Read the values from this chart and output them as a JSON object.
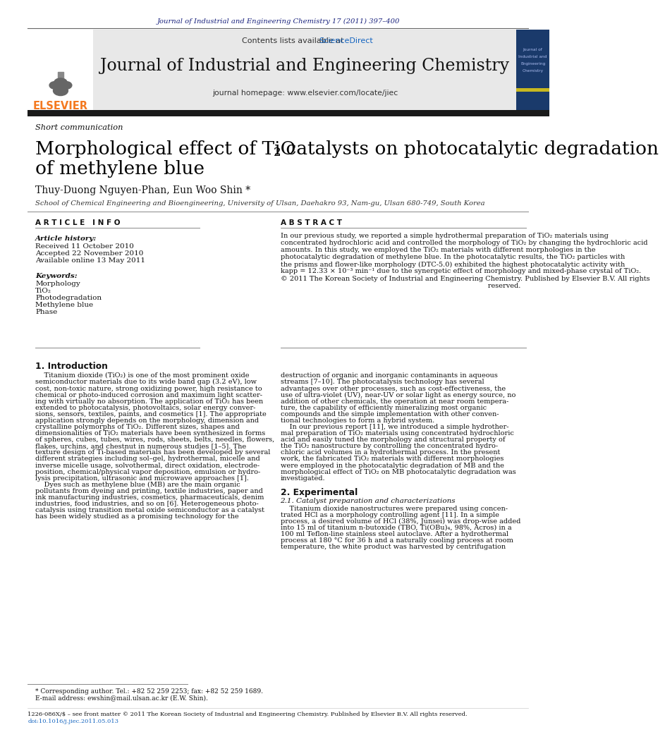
{
  "page_bg": "#ffffff",
  "top_journal_line": "Journal of Industrial and Engineering Chemistry 17 (2011) 397–400",
  "top_journal_color": "#1a237e",
  "header_bg": "#e8e8e8",
  "header_contents": "Contents lists available at",
  "header_sciencedirect": "ScienceDirect",
  "header_sciencedirect_color": "#1565c0",
  "journal_title": "Journal of Industrial and Engineering Chemistry",
  "journal_homepage": "journal homepage: www.elsevier.com/locate/jiec",
  "elsevier_orange": "#f47920",
  "dark_bar_color": "#1a1a1a",
  "section_label": "Short communication",
  "article_title_line1": "Morphological effect of TiO",
  "article_title_sub": "2",
  "article_title_line1b": " catalysts on photocatalytic degradation",
  "article_title_line2": "of methylene blue",
  "authors": "Thuy-Duong Nguyen-Phan, Eun Woo Shin *",
  "affiliation": "School of Chemical Engineering and Bioengineering, University of Ulsan, Daehakro 93, Nam-gu, Ulsan 680-749, South Korea",
  "article_info_header": "A R T I C L E   I N F O",
  "abstract_header": "A B S T R A C T",
  "article_history_label": "Article history:",
  "received": "Received 11 October 2010",
  "accepted": "Accepted 22 November 2010",
  "available": "Available online 13 May 2011",
  "keywords_label": "Keywords:",
  "keywords": [
    "Morphology",
    "TiO₂",
    "Photodegradation",
    "Methylene blue",
    "Phase"
  ],
  "footnote_line1": "* Corresponding author. Tel.: +82 52 259 2253; fax: +82 52 259 1689.",
  "footnote_line2": "E-mail address: ewshin@mail.ulsan.ac.kr (E.W. Shin).",
  "bottom_line1": "1226-086X/$ – see front matter © 2011 The Korean Society of Industrial and Engineering Chemistry. Published by Elsevier B.V. All rights reserved.",
  "bottom_line2": "doi:10.1016/j.jiec.2011.05.013",
  "doi_color": "#1565c0",
  "abstract_lines": [
    "In our previous study, we reported a simple hydrothermal preparation of TiO₂ materials using",
    "concentrated hydrochloric acid and controlled the morphology of TiO₂ by changing the hydrochloric acid",
    "amounts. In this study, we employed the TiO₂ materials with different morphologies in the",
    "photocatalytic degradation of methylene blue. In the photocatalytic results, the TiO₂ particles with",
    "the prisms and flower-like morphology (DTC-5.0) exhibited the highest photocatalytic activity with",
    "kapp = 12.33 × 10⁻³ min⁻¹ due to the synergetic effect of morphology and mixed-phase crystal of TiO₂.",
    "© 2011 The Korean Society of Industrial and Engineering Chemistry. Published by Elsevier B.V. All rights",
    "                                                                                              reserved."
  ],
  "intro_col1_lines": [
    "    Titanium dioxide (TiO₂) is one of the most prominent oxide",
    "semiconductor materials due to its wide band gap (3.2 eV), low",
    "cost, non-toxic nature, strong oxidizing power, high resistance to",
    "chemical or photo-induced corrosion and maximum light scatter-",
    "ing with virtually no absorption. The application of TiO₂ has been",
    "extended to photocatalysis, photovoltaics, solar energy conver-",
    "sions, sensors, textiles, paints, and cosmetics [1]. The appropriate",
    "application strongly depends on the morphology, dimension and",
    "crystalline polymorphs of TiO₂. Different sizes, shapes and",
    "dimensionalities of TiO₂ materials have been synthesized in forms",
    "of spheres, cubes, tubes, wires, rods, sheets, belts, needles, flowers,",
    "flakes, urchins, and chestnut in numerous studies [1–5]. The",
    "texture design of Ti-based materials has been developed by several",
    "different strategies including sol–gel, hydrothermal, micelle and",
    "inverse micelle usage, solvothermal, direct oxidation, electrode-",
    "position, chemical/physical vapor deposition, emulsion or hydro-",
    "lysis precipitation, ultrasonic and microwave approaches [1].",
    "    Dyes such as methylene blue (MB) are the main organic",
    "pollutants from dyeing and printing, textile industries, paper and",
    "ink manufacturing industries, cosmetics, pharmaceuticals, denim",
    "industries, food industries, and so on [6]. Heterogeneous photo-",
    "catalysis using transition metal oxide semiconductor as a catalyst",
    "has been widely studied as a promising technology for the"
  ],
  "intro_col2_lines": [
    "destruction of organic and inorganic contaminants in aqueous",
    "streams [7–10]. The photocatalysis technology has several",
    "advantages over other processes, such as cost-effectiveness, the",
    "use of ultra-violet (UV), near-UV or solar light as energy source, no",
    "addition of other chemicals, the operation at near room tempera-",
    "ture, the capability of efficiently mineralizing most organic",
    "compounds and the simple implementation with other conven-",
    "tional technologies to form a hybrid system.",
    "    In our previous report [11], we introduced a simple hydrother-",
    "mal preparation of TiO₂ materials using concentrated hydrochloric",
    "acid and easily tuned the morphology and structural property of",
    "the TiO₂ nanostructure by controlling the concentrated hydro-",
    "chloric acid volumes in a hydrothermal process. In the present",
    "work, the fabricated TiO₂ materials with different morphologies",
    "were employed in the photocatalytic degradation of MB and the",
    "morphological effect of TiO₂ on MB photocatalytic degradation was",
    "investigated."
  ],
  "sec2_header": "2. Experimental",
  "sec21_header": "2.1. Catalyst preparation and characterizations",
  "sec21_lines": [
    "    Titanium dioxide nanostructures were prepared using concen-",
    "trated HCl as a morphology controlling agent [11]. In a simple",
    "process, a desired volume of HCl (38%, Junsei) was drop-wise added",
    "into 15 ml of titanium n-butoxide (TBO, Ti(OBu)₄, 98%, Acros) in a",
    "100 ml Teflon-line stainless steel autoclave. After a hydrothermal",
    "process at 180 °C for 36 h and a naturally cooling process at room",
    "temperature, the white product was harvested by centrifugation"
  ]
}
